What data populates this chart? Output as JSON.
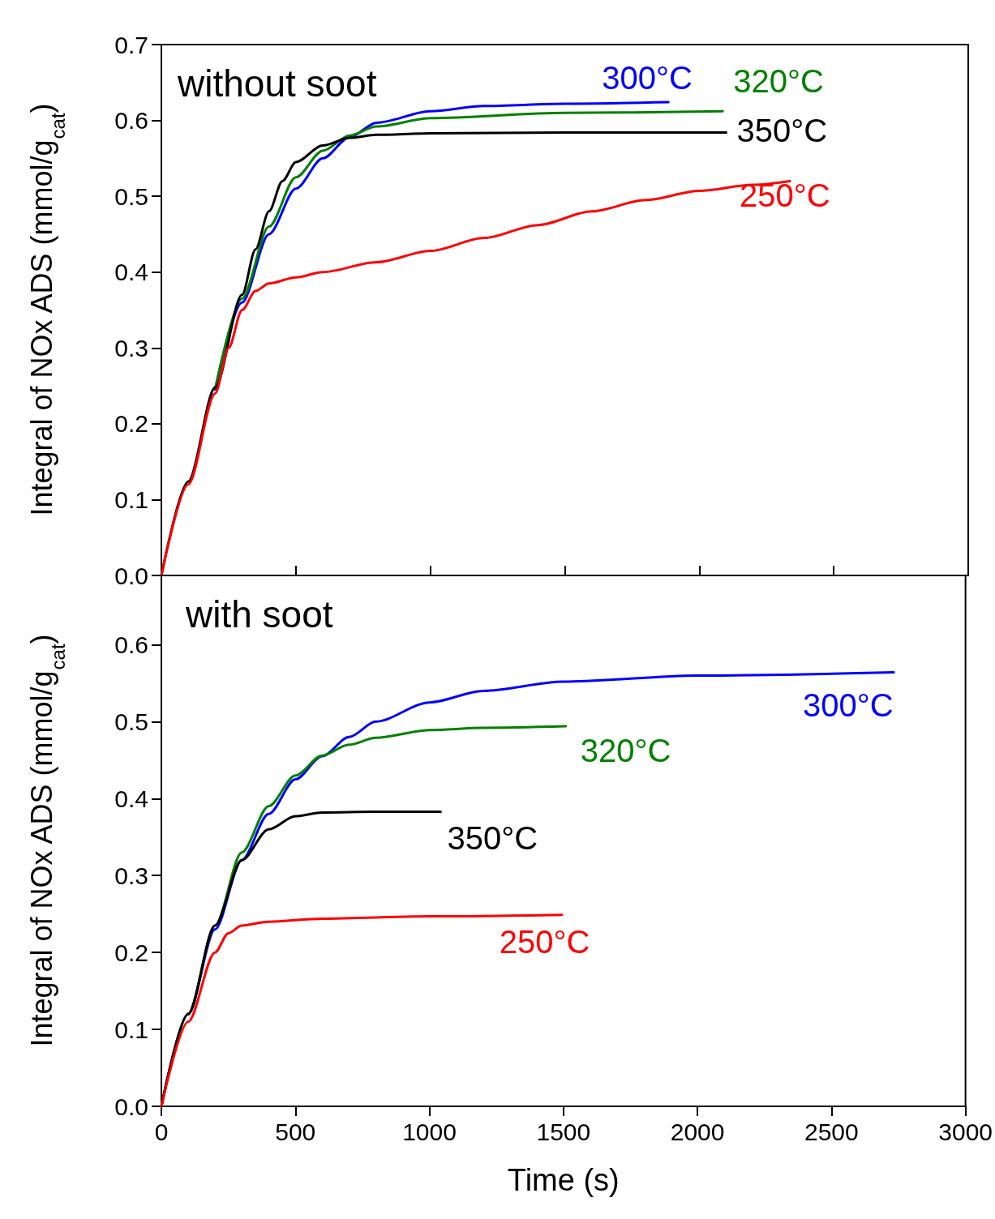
{
  "chart_data": [
    {
      "type": "line",
      "title": "without soot",
      "ylabel": "Integral of NOx ADS (mmol/g$_{cat}$)",
      "xlim": [
        0,
        3000
      ],
      "xticks": [
        0,
        500,
        1000,
        1500,
        2000,
        2500,
        3000
      ],
      "ylim": [
        0,
        0.7
      ],
      "yticks": [
        {
          "value": 0,
          "label": "0.0"
        },
        0.1,
        0.2,
        0.3,
        0.4,
        0.5,
        0.6,
        0.7
      ],
      "tick_labels": "y",
      "grid": false,
      "marker": "none",
      "line_style": "solid",
      "series": [
        {
          "name": "300°C",
          "color": "#0000ff",
          "x": [
            200,
            300,
            400,
            500,
            600,
            700,
            800,
            1000,
            1200,
            1500,
            1885
          ],
          "values": [
            0.245,
            0.36,
            0.45,
            0.51,
            0.55,
            0.578,
            0.597,
            0.612,
            0.619,
            0.622,
            0.624
          ]
        },
        {
          "name": "320°C",
          "color": "#008000",
          "x": [
            200,
            300,
            400,
            500,
            600,
            700,
            800,
            1000,
            1500,
            2087
          ],
          "values": [
            0.246,
            0.365,
            0.46,
            0.525,
            0.56,
            0.58,
            0.592,
            0.603,
            0.61,
            0.612
          ]
        },
        {
          "name": "350°C",
          "color": "#000000",
          "x": [
            0,
            100,
            200,
            300,
            350,
            400,
            450,
            500,
            600,
            700,
            800,
            1000,
            1500,
            2100
          ],
          "values": [
            0,
            0.124,
            0.248,
            0.37,
            0.43,
            0.48,
            0.52,
            0.545,
            0.567,
            0.577,
            0.581,
            0.583,
            0.584,
            0.584
          ]
        },
        {
          "name": "250°C",
          "color": "#ff0000",
          "x": [
            0,
            100,
            200,
            250,
            300,
            350,
            400,
            500,
            600,
            800,
            1000,
            1200,
            1400,
            1600,
            1800,
            2000,
            2200,
            2337
          ],
          "values": [
            0,
            0.12,
            0.24,
            0.3,
            0.35,
            0.375,
            0.385,
            0.393,
            0.4,
            0.413,
            0.428,
            0.445,
            0.462,
            0.48,
            0.495,
            0.507,
            0.515,
            0.52
          ]
        }
      ]
    },
    {
      "type": "line",
      "title": "with soot",
      "ylabel": "Integral of NOx ADS (mmol/g$_{cat}$)",
      "xlabel": "Time (s)",
      "xlim": [
        0,
        3000
      ],
      "xticks": [
        0,
        500,
        1000,
        1500,
        2000,
        2500,
        3000
      ],
      "ylim": [
        0,
        0.69
      ],
      "yticks": [
        {
          "value": 0,
          "label": "0.0"
        },
        0.1,
        0.2,
        0.3,
        0.4,
        0.5,
        0.6
      ],
      "grid": false,
      "marker": "none",
      "line_style": "solid",
      "series": [
        {
          "name": "300°C",
          "color": "#0000ff",
          "x": [
            0,
            100,
            200,
            300,
            400,
            500,
            600,
            700,
            800,
            1000,
            1200,
            1500,
            2000,
            2732
          ],
          "values": [
            0,
            0.12,
            0.23,
            0.32,
            0.38,
            0.425,
            0.455,
            0.48,
            0.5,
            0.525,
            0.54,
            0.552,
            0.56,
            0.564
          ]
        },
        {
          "name": "320°C",
          "color": "#008000",
          "x": [
            0,
            100,
            200,
            300,
            400,
            500,
            600,
            700,
            800,
            1000,
            1200,
            1509
          ],
          "values": [
            0,
            0.12,
            0.235,
            0.33,
            0.39,
            0.43,
            0.456,
            0.47,
            0.479,
            0.489,
            0.492,
            0.494
          ]
        },
        {
          "name": "350°C",
          "color": "#000000",
          "x": [
            0,
            100,
            200,
            300,
            400,
            500,
            600,
            800,
            1042
          ],
          "values": [
            0,
            0.12,
            0.235,
            0.32,
            0.36,
            0.377,
            0.382,
            0.383,
            0.383
          ]
        },
        {
          "name": "250°C",
          "color": "#ff0000",
          "x": [
            0,
            100,
            200,
            250,
            300,
            400,
            600,
            1000,
            1494
          ],
          "values": [
            0,
            0.11,
            0.2,
            0.225,
            0.235,
            0.24,
            0.244,
            0.247,
            0.249
          ]
        }
      ]
    }
  ]
}
